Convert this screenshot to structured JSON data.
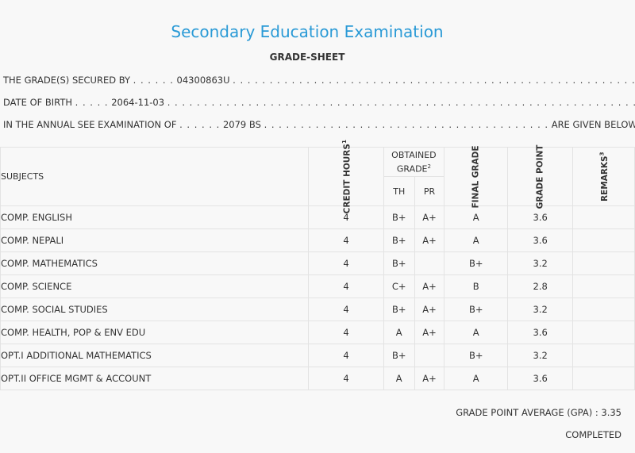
{
  "header": {
    "title": "Secondary Education Examination",
    "subtitle": "GRADE-SHEET"
  },
  "info": {
    "secured_by_label": "THE GRADE(S) SECURED BY",
    "secured_by_value": "04300863U",
    "dob_label": "DATE OF BIRTH",
    "dob_value": "2064-11-03",
    "exam_label": "IN THE ANNUAL SEE EXAMINATION OF",
    "exam_value": "2079 BS",
    "exam_suffix": "ARE GIVEN BELOW . . ."
  },
  "table": {
    "headers": {
      "subjects": "SUBJECTS",
      "credit_hours": "CREDIT HOURS",
      "credit_sup": "1",
      "obtained_grade": "OBTAINED GRADE",
      "obtained_sup": "2",
      "th": "TH",
      "pr": "PR",
      "final_grade": "FINAL GRADE",
      "grade_point": "GRADE POINT",
      "remarks": "REMARKS",
      "remarks_sup": "3"
    },
    "rows": [
      {
        "subject": "COMP. ENGLISH",
        "credit": "4",
        "th": "B+",
        "pr": "A+",
        "final": "A",
        "gp": "3.6",
        "remarks": ""
      },
      {
        "subject": "COMP. NEPALI",
        "credit": "4",
        "th": "B+",
        "pr": "A+",
        "final": "A",
        "gp": "3.6",
        "remarks": ""
      },
      {
        "subject": "COMP. MATHEMATICS",
        "credit": "4",
        "th": "B+",
        "pr": "",
        "final": "B+",
        "gp": "3.2",
        "remarks": ""
      },
      {
        "subject": "COMP. SCIENCE",
        "credit": "4",
        "th": "C+",
        "pr": "A+",
        "final": "B",
        "gp": "2.8",
        "remarks": ""
      },
      {
        "subject": "COMP. SOCIAL STUDIES",
        "credit": "4",
        "th": "B+",
        "pr": "A+",
        "final": "B+",
        "gp": "3.2",
        "remarks": ""
      },
      {
        "subject": "COMP. HEALTH, POP & ENV EDU",
        "credit": "4",
        "th": "A",
        "pr": "A+",
        "final": "A",
        "gp": "3.6",
        "remarks": ""
      },
      {
        "subject": "OPT.I ADDITIONAL MATHEMATICS",
        "credit": "4",
        "th": "B+",
        "pr": "",
        "final": "B+",
        "gp": "3.2",
        "remarks": ""
      },
      {
        "subject": "OPT.II OFFICE MGMT & ACCOUNT",
        "credit": "4",
        "th": "A",
        "pr": "A+",
        "final": "A",
        "gp": "3.6",
        "remarks": ""
      }
    ]
  },
  "summary": {
    "gpa_label": "GRADE POINT AVERAGE (GPA) :",
    "gpa_value": "3.35",
    "status": "COMPLETED"
  },
  "colors": {
    "title": "#2a9ad6",
    "border": "#e3e3e3",
    "background": "#f8f8f8"
  }
}
